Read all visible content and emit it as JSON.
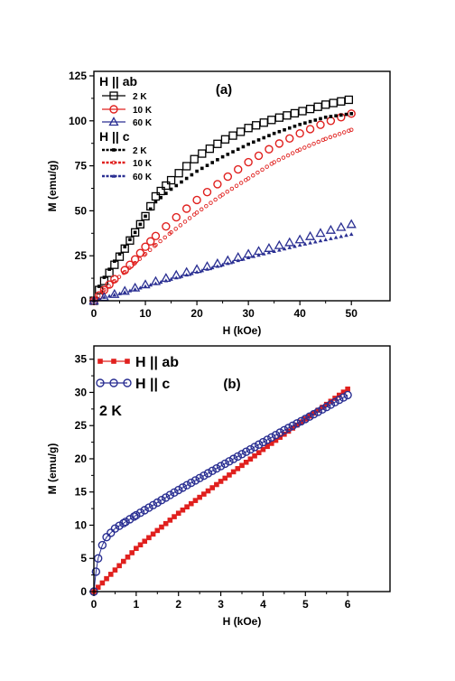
{
  "chart_data": [
    {
      "type": "scatter",
      "panel_label": "(a)",
      "xlabel": "H (kOe)",
      "ylabel": "M (emu/g)",
      "xlim": [
        0,
        57.5
      ],
      "ylim": [
        0,
        127.5
      ],
      "xticks": [
        0,
        10,
        20,
        30,
        40,
        50
      ],
      "yticks": [
        0,
        25,
        50,
        75,
        100,
        125
      ],
      "grid": false,
      "legend_position": "top-left",
      "legend_groups": [
        {
          "title": "H || ab",
          "entries": [
            "2 K",
            "10 K",
            "60 K"
          ]
        },
        {
          "title": "H || c",
          "entries": [
            "2 K",
            "10 K",
            "60 K"
          ]
        }
      ],
      "series": [
        {
          "name": "2 K",
          "group": "H || ab",
          "color": "#000000",
          "marker": "square-open",
          "x": [
            0,
            1,
            2,
            4,
            6,
            8,
            10,
            12,
            15,
            20,
            25,
            30,
            35,
            40,
            45,
            50
          ],
          "y": [
            0,
            6,
            11,
            20,
            29,
            38,
            47,
            58,
            67,
            80,
            89,
            96,
            101,
            105,
            109,
            112
          ]
        },
        {
          "name": "10 K",
          "group": "H || ab",
          "color": "#e0201e",
          "marker": "circle-open",
          "x": [
            0,
            2,
            4,
            6,
            8,
            10,
            12,
            15,
            20,
            25,
            30,
            35,
            40,
            45,
            50
          ],
          "y": [
            0,
            6,
            12,
            17,
            23,
            30,
            36,
            44,
            56,
            67,
            77,
            86,
            93,
            99,
            104
          ]
        },
        {
          "name": "60 K",
          "group": "H || ab",
          "color": "#2a2f92",
          "marker": "triangle-open",
          "x": [
            0,
            2,
            5,
            10,
            15,
            20,
            25,
            30,
            35,
            40,
            45,
            50
          ],
          "y": [
            0,
            2,
            4.5,
            9,
            13.5,
            17.5,
            21.5,
            26,
            30,
            34,
            38.5,
            42.5
          ]
        },
        {
          "name": "2 K",
          "group": "H || c",
          "color": "#000000",
          "marker": "square-filled-small",
          "x": [
            0,
            1,
            2,
            4,
            6,
            8,
            10,
            12,
            15,
            20,
            25,
            30,
            35,
            40,
            45,
            50
          ],
          "y": [
            0,
            8,
            13,
            22,
            30,
            38,
            47,
            55,
            62,
            72,
            80,
            87,
            93,
            98,
            102,
            104
          ]
        },
        {
          "name": "10 K",
          "group": "H || c",
          "color": "#e0201e",
          "marker": "circle-small",
          "x": [
            0,
            2,
            4,
            6,
            8,
            10,
            12,
            15,
            20,
            25,
            30,
            35,
            40,
            45,
            50
          ],
          "y": [
            0,
            6,
            11,
            16,
            21,
            26,
            31,
            38,
            49,
            59,
            68,
            77,
            84,
            90,
            95
          ]
        },
        {
          "name": "60 K",
          "group": "H || c",
          "color": "#2a2f92",
          "marker": "triangle-filled-small",
          "x": [
            0,
            2,
            5,
            10,
            15,
            20,
            25,
            30,
            35,
            40,
            45,
            50
          ],
          "y": [
            0,
            2,
            4,
            8,
            12,
            16,
            20,
            24,
            27.5,
            31,
            34,
            37
          ]
        }
      ]
    },
    {
      "type": "line",
      "panel_label": "(b)",
      "annotation": "2 K",
      "xlabel": "H (kOe)",
      "ylabel": "M (emu/g)",
      "xlim": [
        0,
        7
      ],
      "ylim": [
        0,
        37
      ],
      "xticks": [
        0,
        1,
        2,
        3,
        4,
        5,
        6
      ],
      "yticks": [
        0,
        5,
        10,
        15,
        20,
        25,
        30,
        35
      ],
      "grid": false,
      "legend_position": "top-left",
      "series": [
        {
          "name": "H || ab",
          "color": "#e0201e",
          "marker": "square-filled",
          "x": [
            0,
            0.2,
            0.4,
            0.6,
            0.8,
            1,
            1.5,
            2,
            2.5,
            3,
            3.5,
            4,
            4.5,
            5,
            5.5,
            6
          ],
          "y": [
            0,
            1.3,
            2.6,
            3.9,
            5.2,
            6.5,
            9.2,
            11.8,
            14.2,
            16.6,
            19.0,
            21.4,
            23.7,
            26.0,
            28.2,
            30.5
          ]
        },
        {
          "name": "H || c",
          "color": "#2a2f92",
          "marker": "circle-open",
          "x": [
            0,
            0.05,
            0.1,
            0.2,
            0.3,
            0.5,
            0.75,
            1,
            1.5,
            2,
            2.5,
            3,
            3.5,
            4,
            4.5,
            5,
            5.5,
            6
          ],
          "y": [
            0,
            3,
            5,
            7,
            8.2,
            9.5,
            10.5,
            11.5,
            13.4,
            15.3,
            17.1,
            18.9,
            20.7,
            22.5,
            24.3,
            26.0,
            27.8,
            29.6
          ]
        }
      ]
    }
  ]
}
